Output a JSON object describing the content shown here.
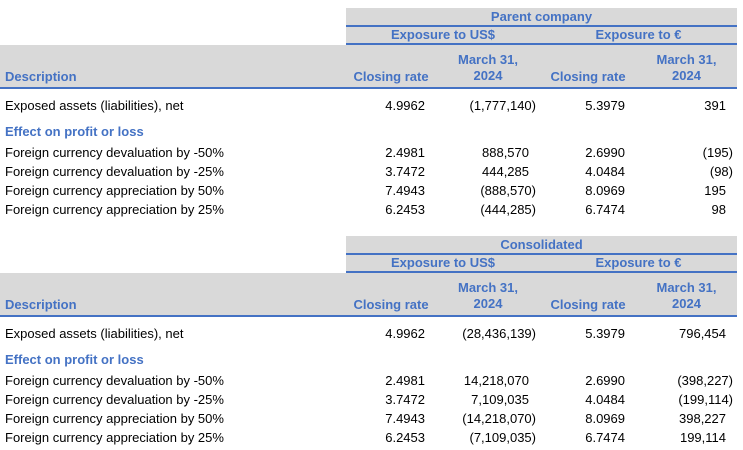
{
  "colors": {
    "accent_blue": "#4472C4",
    "header_gray": "#D9D9D9",
    "body_text": "#000000",
    "background": "#ffffff"
  },
  "tables": [
    {
      "group_title": "Parent company",
      "exposure_usd": "Exposure to US$",
      "exposure_eur": "Exposure to €",
      "description_header": "Description",
      "closing_rate_header": "Closing rate",
      "date_line1": "March 31,",
      "date_line2": "2024",
      "exposed": {
        "label": "Exposed assets (liabilities), net",
        "v": [
          "4.9962",
          "(1,777,140)",
          "5.3979",
          "391"
        ]
      },
      "section_title": "Effect on profit or loss",
      "data": [
        {
          "label": "Foreign currency devaluation by -50%",
          "v": [
            "2.4981",
            "888,570",
            "2.6990",
            "(195)"
          ]
        },
        {
          "label": "Foreign currency devaluation by -25%",
          "v": [
            "3.7472",
            "444,285",
            "4.0484",
            "(98)"
          ]
        },
        {
          "label": "Foreign currency appreciation by 50%",
          "v": [
            "7.4943",
            "(888,570)",
            "8.0969",
            "195"
          ]
        },
        {
          "label": "Foreign currency appreciation by 25%",
          "v": [
            "6.2453",
            "(444,285)",
            "6.7474",
            "98"
          ]
        }
      ]
    },
    {
      "group_title": "Consolidated",
      "exposure_usd": "Exposure to US$",
      "exposure_eur": "Exposure to €",
      "description_header": "Description",
      "closing_rate_header": "Closing rate",
      "date_line1": "March 31,",
      "date_line2": "2024",
      "exposed": {
        "label": "Exposed assets (liabilities), net",
        "v": [
          "4.9962",
          "(28,436,139)",
          "5.3979",
          "796,454"
        ]
      },
      "section_title": "Effect on profit or loss",
      "data": [
        {
          "label": "Foreign currency devaluation by -50%",
          "v": [
            "2.4981",
            "14,218,070",
            "2.6990",
            "(398,227)"
          ]
        },
        {
          "label": "Foreign currency devaluation by -25%",
          "v": [
            "3.7472",
            "7,109,035",
            "4.0484",
            "(199,114)"
          ]
        },
        {
          "label": "Foreign currency appreciation by 50%",
          "v": [
            "7.4943",
            "(14,218,070)",
            "8.0969",
            "398,227"
          ]
        },
        {
          "label": "Foreign currency appreciation by 25%",
          "v": [
            "6.2453",
            "(7,109,035)",
            "6.7474",
            "199,114"
          ]
        }
      ]
    }
  ]
}
